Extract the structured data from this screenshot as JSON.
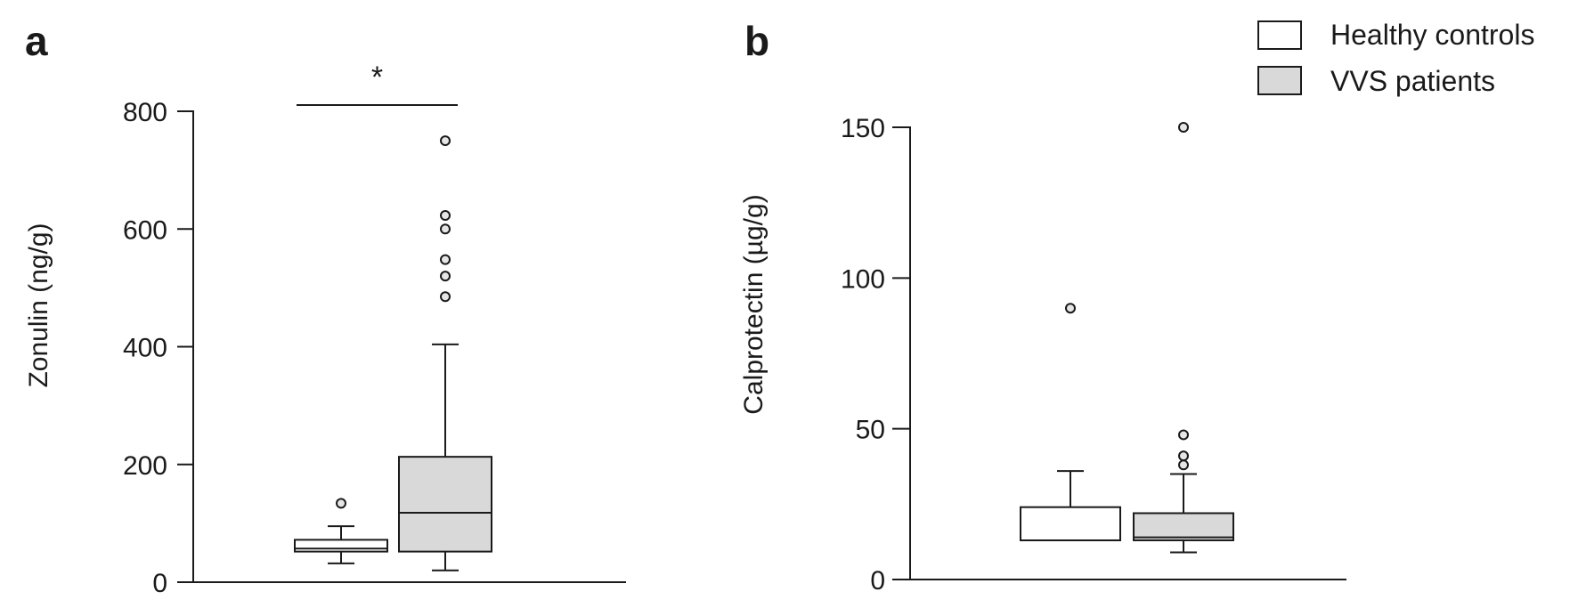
{
  "legend": {
    "position": "top-right",
    "items": [
      {
        "label": "Healthy controls",
        "fill": "#ffffff"
      },
      {
        "label": "VVS patients",
        "fill": "#d9d9d9"
      }
    ]
  },
  "chart_data": [
    {
      "type": "box",
      "panel": "a",
      "ylabel": "Zonulin (ng/g)",
      "ylim": [
        0,
        800
      ],
      "yticks": [
        "0",
        "200",
        "400",
        "600",
        "800"
      ],
      "grid": false,
      "groups": [
        {
          "name": "Healthy controls",
          "fill": "#ffffff",
          "whisker_low": 32,
          "q1": 52,
          "median": 57,
          "q3": 72,
          "whisker_high": 95,
          "outliers": [
            134
          ]
        },
        {
          "name": "VVS patients",
          "fill": "#d9d9d9",
          "whisker_low": 20,
          "q1": 52,
          "median": 118,
          "q3": 213,
          "whisker_high": 404,
          "outliers": [
            485,
            520,
            548,
            600,
            623,
            750
          ]
        }
      ],
      "significance": {
        "label": "*",
        "between": [
          0,
          1
        ]
      }
    },
    {
      "type": "box",
      "panel": "b",
      "ylabel": "Calprotectin (µg/g)",
      "ylim": [
        0,
        150
      ],
      "yticks": [
        "0",
        "50",
        "100",
        "150"
      ],
      "grid": false,
      "groups": [
        {
          "name": "Healthy controls",
          "fill": "#ffffff",
          "whisker_low": 13,
          "q1": 13,
          "median": 13,
          "q3": 24,
          "whisker_high": 36,
          "outliers": [
            90
          ]
        },
        {
          "name": "VVS patients",
          "fill": "#d9d9d9",
          "whisker_low": 9,
          "q1": 13,
          "median": 14,
          "q3": 22,
          "whisker_high": 35,
          "outliers": [
            38,
            41,
            48,
            150
          ]
        }
      ]
    }
  ]
}
